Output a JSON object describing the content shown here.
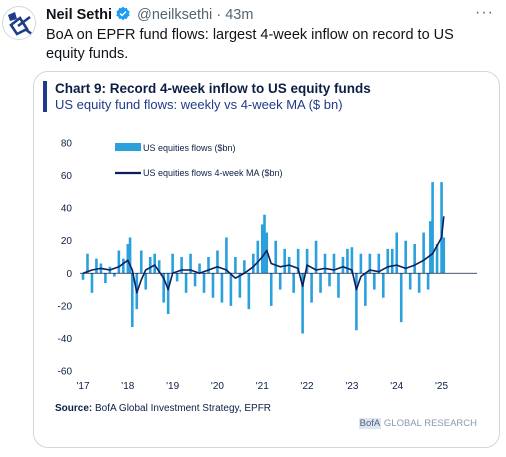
{
  "author": {
    "name": "Neil Sethi",
    "handle": "@neilksethi",
    "separator": "·",
    "time": "43m"
  },
  "tweet_text": "BoA on EPFR fund flows: largest 4-week inflow on record to US equity funds.",
  "card": {
    "title": "Chart 9: Record 4-week inflow to US equity funds",
    "subtitle": "US equity fund flows: weekly vs 4-week MA ($ bn)",
    "source_label": "Source:",
    "source_text": " BofA Global Investment Strategy, EPFR",
    "brand_prefix": "BofA",
    "brand_suffix": " GLOBAL RESEARCH"
  },
  "colors": {
    "weekly": "#2aa0dc",
    "ma": "#0b1f5c",
    "verified": "#1d9bf0"
  },
  "icons": {
    "verified": "verified-badge-icon",
    "more": "more-icon"
  },
  "chart_data": {
    "type": "bar",
    "title": "Chart 9: Record 4-week inflow to US equity funds",
    "subtitle": "US equity fund flows: weekly vs 4-week MA ($ bn)",
    "ylim": [
      -60,
      80
    ],
    "yticks": [
      80,
      60,
      40,
      20,
      0,
      -20,
      -40,
      -60
    ],
    "xlim": [
      2017,
      2025.3
    ],
    "xticks": [
      "'17",
      "'18",
      "'19",
      "'20",
      "'21",
      "'22",
      "'23",
      "'24",
      "'25"
    ],
    "legend_position": "top-left",
    "series": [
      {
        "name": "US equities flows ($bn)",
        "kind": "bar",
        "points": [
          [
            2017.0,
            -4
          ],
          [
            2017.1,
            12
          ],
          [
            2017.2,
            -12
          ],
          [
            2017.3,
            9
          ],
          [
            2017.4,
            6
          ],
          [
            2017.5,
            -6
          ],
          [
            2017.6,
            4
          ],
          [
            2017.7,
            -2
          ],
          [
            2017.8,
            14
          ],
          [
            2017.9,
            9
          ],
          [
            2018.0,
            18
          ],
          [
            2018.05,
            22
          ],
          [
            2018.1,
            -33
          ],
          [
            2018.2,
            -22
          ],
          [
            2018.3,
            14
          ],
          [
            2018.4,
            -10
          ],
          [
            2018.5,
            10
          ],
          [
            2018.6,
            12
          ],
          [
            2018.7,
            8
          ],
          [
            2018.8,
            -18
          ],
          [
            2018.9,
            -25
          ],
          [
            2019.0,
            12
          ],
          [
            2019.1,
            -5
          ],
          [
            2019.2,
            10
          ],
          [
            2019.3,
            -12
          ],
          [
            2019.4,
            12
          ],
          [
            2019.5,
            -8
          ],
          [
            2019.6,
            6
          ],
          [
            2019.7,
            -12
          ],
          [
            2019.8,
            10
          ],
          [
            2019.9,
            -15
          ],
          [
            2020.0,
            14
          ],
          [
            2020.1,
            -18
          ],
          [
            2020.2,
            22
          ],
          [
            2020.3,
            -20
          ],
          [
            2020.4,
            10
          ],
          [
            2020.5,
            -15
          ],
          [
            2020.6,
            8
          ],
          [
            2020.7,
            -22
          ],
          [
            2020.8,
            12
          ],
          [
            2020.9,
            20
          ],
          [
            2021.0,
            30
          ],
          [
            2021.05,
            36
          ],
          [
            2021.1,
            25
          ],
          [
            2021.2,
            -20
          ],
          [
            2021.3,
            20
          ],
          [
            2021.4,
            -10
          ],
          [
            2021.5,
            15
          ],
          [
            2021.6,
            10
          ],
          [
            2021.7,
            -12
          ],
          [
            2021.8,
            15
          ],
          [
            2021.9,
            -37
          ],
          [
            2022.0,
            15
          ],
          [
            2022.1,
            -18
          ],
          [
            2022.2,
            20
          ],
          [
            2022.3,
            -12
          ],
          [
            2022.4,
            12
          ],
          [
            2022.5,
            -8
          ],
          [
            2022.6,
            12
          ],
          [
            2022.7,
            -15
          ],
          [
            2022.8,
            10
          ],
          [
            2022.9,
            15
          ],
          [
            2023.0,
            16
          ],
          [
            2023.1,
            -35
          ],
          [
            2023.2,
            12
          ],
          [
            2023.3,
            -20
          ],
          [
            2023.4,
            12
          ],
          [
            2023.5,
            -10
          ],
          [
            2023.6,
            12
          ],
          [
            2023.7,
            -15
          ],
          [
            2023.8,
            15
          ],
          [
            2023.9,
            15
          ],
          [
            2024.0,
            25
          ],
          [
            2024.1,
            -30
          ],
          [
            2024.2,
            20
          ],
          [
            2024.3,
            -10
          ],
          [
            2024.4,
            18
          ],
          [
            2024.5,
            -12
          ],
          [
            2024.6,
            25
          ],
          [
            2024.7,
            -10
          ],
          [
            2024.75,
            32
          ],
          [
            2024.8,
            56
          ],
          [
            2024.9,
            18
          ],
          [
            2025.0,
            56
          ],
          [
            2025.05,
            22
          ]
        ]
      },
      {
        "name": "US equities flows 4-week MA ($bn)",
        "kind": "line",
        "points": [
          [
            2017.0,
            0
          ],
          [
            2017.2,
            2
          ],
          [
            2017.4,
            3
          ],
          [
            2017.6,
            2
          ],
          [
            2017.8,
            4
          ],
          [
            2018.0,
            8
          ],
          [
            2018.1,
            2
          ],
          [
            2018.2,
            -12
          ],
          [
            2018.3,
            -4
          ],
          [
            2018.4,
            2
          ],
          [
            2018.6,
            5
          ],
          [
            2018.8,
            -3
          ],
          [
            2018.9,
            -10
          ],
          [
            2019.0,
            0
          ],
          [
            2019.2,
            2
          ],
          [
            2019.4,
            2
          ],
          [
            2019.6,
            0
          ],
          [
            2019.8,
            2
          ],
          [
            2020.0,
            4
          ],
          [
            2020.2,
            2
          ],
          [
            2020.4,
            -3
          ],
          [
            2020.6,
            0
          ],
          [
            2020.8,
            4
          ],
          [
            2021.0,
            10
          ],
          [
            2021.1,
            14
          ],
          [
            2021.2,
            6
          ],
          [
            2021.4,
            4
          ],
          [
            2021.6,
            5
          ],
          [
            2021.8,
            3
          ],
          [
            2021.9,
            -8
          ],
          [
            2022.0,
            5
          ],
          [
            2022.2,
            2
          ],
          [
            2022.4,
            3
          ],
          [
            2022.6,
            2
          ],
          [
            2022.8,
            4
          ],
          [
            2023.0,
            2
          ],
          [
            2023.1,
            -10
          ],
          [
            2023.2,
            -2
          ],
          [
            2023.4,
            2
          ],
          [
            2023.6,
            1
          ],
          [
            2023.8,
            4
          ],
          [
            2024.0,
            5
          ],
          [
            2024.2,
            3
          ],
          [
            2024.4,
            5
          ],
          [
            2024.6,
            8
          ],
          [
            2024.8,
            12
          ],
          [
            2025.0,
            22
          ],
          [
            2025.05,
            35
          ]
        ]
      }
    ]
  }
}
